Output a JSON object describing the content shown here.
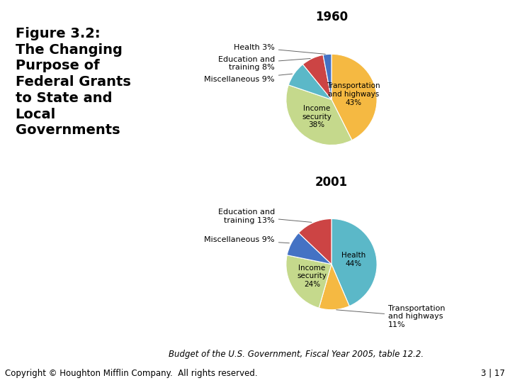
{
  "title": "Figure 3.2:\nThe Changing\nPurpose of\nFederal Grants\nto State and\nLocal\nGovernments",
  "annotations": [
    "Budget of the U.S. Government, Fiscal Year 2005, table 12.2.",
    "Copyright © Houghton Mifflin Company.  All rights reserved.",
    "3 | 17"
  ],
  "chart_data": [
    {
      "type": "pie",
      "title": "1960",
      "categories": [
        "Transportation\nand highways\n43%",
        "Income\nsecurity\n38%",
        "Miscellaneous 9%",
        "Education and\ntraining 8%",
        "Health 3%"
      ],
      "values": [
        43,
        38,
        9,
        8,
        3
      ],
      "colors": [
        "#f5b942",
        "#c5d98c",
        "#5bb8c8",
        "#cc4444",
        "#4472c4"
      ]
    },
    {
      "type": "pie",
      "title": "2001",
      "categories": [
        "Health\n44%",
        "Transportation\nand highways\n11%",
        "Income\nsecurity\n24%",
        "Miscellaneous 9%",
        "Education and\ntraining 13%"
      ],
      "values": [
        44,
        11,
        24,
        9,
        13
      ],
      "colors": [
        "#5bb8c8",
        "#f5b942",
        "#c5d98c",
        "#4472c4",
        "#cc4444"
      ]
    }
  ]
}
